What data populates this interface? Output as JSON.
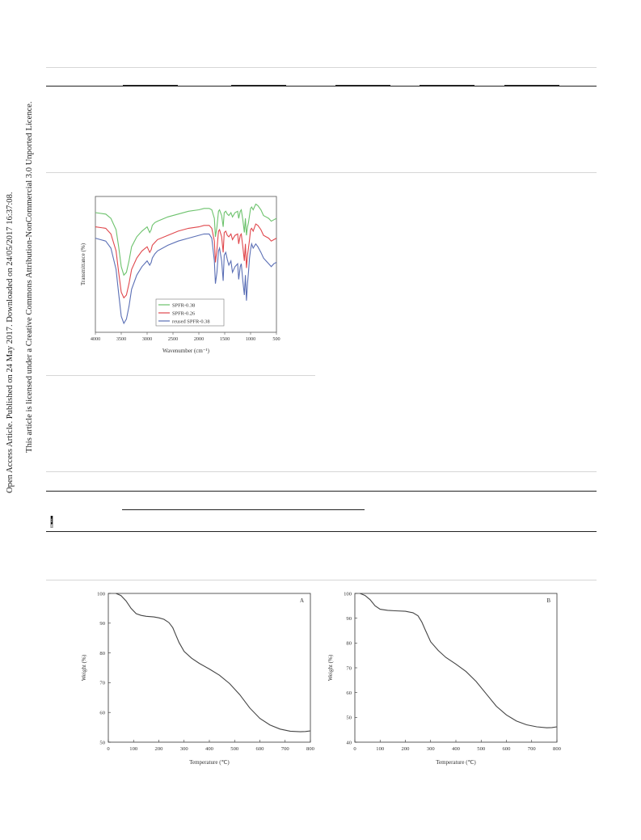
{
  "sidebar": {
    "line1": "Open Access Article. Published on 24 May 2017. Downloaded on 24/05/2017 16:37:08.",
    "line2": "This article is licensed under a Creative Commons Attribution-NonCommercial 3.0 Unported Licence.",
    "badge_cc": "cc",
    "badge_text": "BY-NC"
  },
  "chart_data": [
    {
      "type": "line",
      "id": "ftir",
      "xlabel": "Wavenumber (cm⁻¹)",
      "ylabel": "Transmittance (%)",
      "xlim": [
        4000,
        500
      ],
      "x_reversed": true,
      "xticks": [
        4000,
        3500,
        3000,
        2500,
        2000,
        1500,
        1000,
        500
      ],
      "y_ticks_shown": false,
      "legend_position": "bottom-center",
      "series": [
        {
          "name": "SPFR-0.38",
          "color": "#6cc26c",
          "x": [
            4000,
            3800,
            3700,
            3600,
            3550,
            3500,
            3450,
            3400,
            3350,
            3300,
            3200,
            3100,
            3000,
            2950,
            2920,
            2900,
            2850,
            2800,
            2600,
            2400,
            2200,
            2000,
            1900,
            1800,
            1750,
            1700,
            1680,
            1650,
            1620,
            1600,
            1560,
            1530,
            1510,
            1480,
            1450,
            1420,
            1380,
            1350,
            1300,
            1250,
            1230,
            1200,
            1180,
            1150,
            1120,
            1100,
            1080,
            1060,
            1040,
            1020,
            1000,
            980,
            950,
            900,
            860,
            800,
            750,
            700,
            650,
            600,
            550,
            500
          ],
          "y": [
            82,
            81,
            78,
            70,
            58,
            44,
            38,
            40,
            48,
            58,
            65,
            69,
            72,
            68,
            70,
            73,
            75,
            76,
            79,
            81,
            83,
            84,
            85,
            85,
            84,
            78,
            65,
            72,
            83,
            84,
            80,
            72,
            82,
            83,
            81,
            80,
            82,
            79,
            82,
            83,
            78,
            83,
            84,
            77,
            68,
            78,
            66,
            72,
            75,
            80,
            85,
            86,
            84,
            88,
            87,
            84,
            80,
            79,
            78,
            76,
            77,
            78
          ]
        },
        {
          "name": "SPFR-0.26",
          "color": "#e0474c",
          "x": [
            4000,
            3800,
            3700,
            3600,
            3550,
            3500,
            3450,
            3400,
            3350,
            3300,
            3200,
            3100,
            3000,
            2950,
            2920,
            2900,
            2850,
            2800,
            2600,
            2400,
            2200,
            2000,
            1900,
            1800,
            1750,
            1700,
            1680,
            1650,
            1620,
            1600,
            1560,
            1530,
            1510,
            1480,
            1450,
            1420,
            1380,
            1350,
            1300,
            1250,
            1230,
            1200,
            1180,
            1150,
            1120,
            1100,
            1080,
            1060,
            1040,
            1020,
            1000,
            980,
            950,
            900,
            860,
            800,
            750,
            700,
            650,
            600,
            550,
            500
          ],
          "y": [
            72,
            71,
            67,
            55,
            40,
            26,
            22,
            24,
            32,
            42,
            50,
            55,
            58,
            54,
            56,
            59,
            61,
            63,
            66,
            69,
            71,
            72,
            73,
            73,
            71,
            62,
            47,
            56,
            69,
            70,
            65,
            54,
            68,
            69,
            66,
            65,
            67,
            63,
            66,
            67,
            60,
            66,
            67,
            58,
            48,
            60,
            43,
            52,
            57,
            63,
            70,
            71,
            69,
            74,
            73,
            70,
            66,
            65,
            64,
            62,
            63,
            64
          ]
        },
        {
          "name": "reused SPFR-0.38",
          "color": "#5b6fb5",
          "x": [
            4000,
            3800,
            3700,
            3600,
            3550,
            3500,
            3450,
            3400,
            3350,
            3300,
            3200,
            3100,
            3000,
            2950,
            2920,
            2900,
            2850,
            2800,
            2600,
            2400,
            2200,
            2000,
            1900,
            1800,
            1750,
            1700,
            1680,
            1650,
            1620,
            1600,
            1560,
            1530,
            1510,
            1480,
            1450,
            1420,
            1380,
            1350,
            1300,
            1250,
            1230,
            1200,
            1180,
            1150,
            1120,
            1100,
            1080,
            1060,
            1040,
            1020,
            1000,
            980,
            950,
            900,
            860,
            800,
            750,
            700,
            650,
            600,
            550,
            500
          ],
          "y": [
            64,
            62,
            57,
            42,
            25,
            9,
            4,
            7,
            16,
            28,
            38,
            44,
            48,
            45,
            47,
            50,
            53,
            55,
            59,
            62,
            64,
            66,
            67,
            67,
            64,
            48,
            32,
            40,
            55,
            57,
            48,
            34,
            52,
            54,
            49,
            45,
            48,
            40,
            44,
            46,
            35,
            44,
            46,
            34,
            24,
            38,
            20,
            32,
            40,
            50,
            56,
            60,
            57,
            60,
            58,
            54,
            50,
            48,
            46,
            44,
            46,
            47
          ]
        }
      ]
    },
    {
      "type": "line",
      "id": "tga-A",
      "panel_label": "A",
      "xlabel": "Temperature (℃)",
      "ylabel": "Weight (%)",
      "xlim": [
        0,
        800
      ],
      "ylim": [
        50,
        100
      ],
      "xticks": [
        0,
        100,
        200,
        300,
        400,
        500,
        600,
        700,
        800
      ],
      "yticks": [
        50,
        60,
        70,
        80,
        90,
        100
      ],
      "series": [
        {
          "x": [
            30,
            50,
            70,
            90,
            110,
            130,
            150,
            180,
            200,
            220,
            240,
            255,
            265,
            280,
            300,
            330,
            360,
            400,
            440,
            480,
            520,
            560,
            600,
            640,
            680,
            720,
            760,
            780,
            800
          ],
          "y": [
            100,
            99.3,
            97.5,
            95,
            93.2,
            92.6,
            92.3,
            92.1,
            91.8,
            91.3,
            90.2,
            88.5,
            86.5,
            83.5,
            80.5,
            78.2,
            76.5,
            74.6,
            72.5,
            69.7,
            66,
            61.5,
            58,
            55.8,
            54.4,
            53.7,
            53.5,
            53.6,
            53.8
          ]
        }
      ]
    },
    {
      "type": "line",
      "id": "tga-B",
      "panel_label": "B",
      "xlabel": "Temperature (℃)",
      "ylabel": "Weight (%)",
      "xlim": [
        0,
        800
      ],
      "ylim": [
        40,
        100
      ],
      "xticks": [
        0,
        100,
        200,
        300,
        400,
        500,
        600,
        700,
        800
      ],
      "yticks": [
        40,
        50,
        60,
        70,
        80,
        90,
        100
      ],
      "series": [
        {
          "x": [
            20,
            40,
            60,
            80,
            100,
            130,
            160,
            200,
            230,
            250,
            265,
            280,
            300,
            330,
            360,
            400,
            440,
            480,
            520,
            560,
            600,
            640,
            680,
            720,
            760,
            780,
            800
          ],
          "y": [
            100,
            99.2,
            97.5,
            95,
            93.6,
            93.2,
            93,
            92.8,
            92.2,
            91,
            88.5,
            85,
            80.5,
            77,
            74.2,
            71.5,
            68.5,
            64.5,
            59.5,
            54.5,
            51,
            48.5,
            47,
            46.2,
            45.8,
            45.9,
            46.2
          ]
        }
      ]
    }
  ]
}
